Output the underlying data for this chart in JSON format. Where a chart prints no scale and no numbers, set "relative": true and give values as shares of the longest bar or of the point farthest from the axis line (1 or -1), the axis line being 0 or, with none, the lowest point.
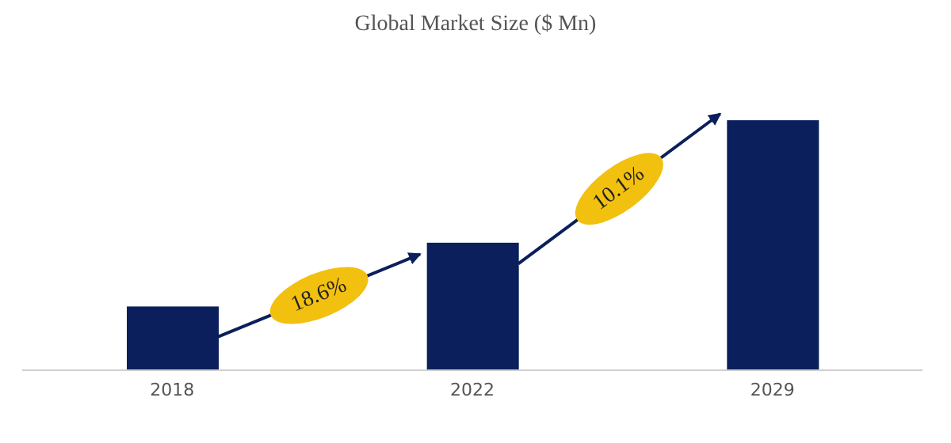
{
  "chart_data": {
    "type": "bar",
    "title": "Global Market Size ($ Mn)",
    "categories": [
      "2018",
      "2022",
      "2029"
    ],
    "values": [
      0.255,
      0.51,
      1
    ],
    "color": "#0b1f5c",
    "relative": true,
    "annotations": [
      "18.6%",
      "10.1%"
    ]
  }
}
